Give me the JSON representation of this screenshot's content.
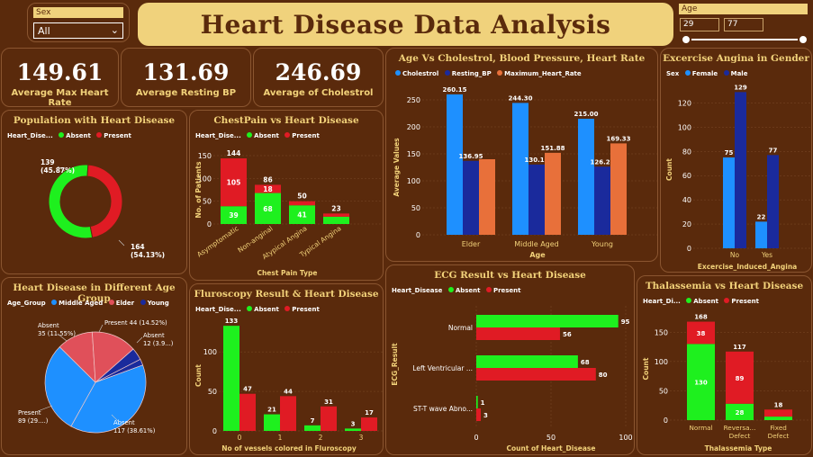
{
  "header": {
    "title": "Heart Disease Data Analysis"
  },
  "sex_slicer": {
    "label": "Sex",
    "value": "All"
  },
  "age_slicer": {
    "label": "Age",
    "min": "29",
    "max": "77",
    "range": [
      29,
      77
    ]
  },
  "kpis": [
    {
      "value": "149.61",
      "label": "Average Max Heart Rate"
    },
    {
      "value": "131.69",
      "label": "Average Resting BP"
    },
    {
      "value": "246.69",
      "label": "Average of Cholestrol"
    }
  ],
  "colors": {
    "absent": "#1ef01e",
    "present": "#e01b24",
    "cholestrol": "#1e90ff",
    "resting_bp": "#1a2a9c",
    "max_hr": "#e8703a",
    "female": "#1e90ff",
    "male": "#1a2a9c",
    "middle_aged": "#1e90ff",
    "elder": "#e0505a",
    "young": "#1a2a9c"
  },
  "chart_data": [
    {
      "id": "population",
      "type": "pie",
      "title": "Population with Heart Disease",
      "legend_title": "Heart_Dise...",
      "series": [
        {
          "name": "Absent",
          "value": 164,
          "label": "164\n(54.13%)"
        },
        {
          "name": "Present",
          "value": 139,
          "label": "139\n(45.87%)"
        }
      ]
    },
    {
      "id": "chestpain",
      "type": "bar",
      "title": "ChestPain vs Heart Disease",
      "legend_title": "Heart_Dise...",
      "xlabel": "Chest Pain Type",
      "ylabel": "No. of Patients",
      "categories": [
        "Asymptomatic",
        "Non-anginal",
        "Atypical Angina",
        "Typical Angina"
      ],
      "series": [
        {
          "name": "Absent",
          "values": [
            39,
            68,
            41,
            16
          ]
        },
        {
          "name": "Present",
          "values": [
            105,
            18,
            9,
            7
          ]
        }
      ],
      "totals": [
        "144",
        "86",
        "50",
        "23"
      ],
      "segment_labels": {
        "Absent": [
          "39",
          "68",
          "41",
          ""
        ],
        "Present": [
          "105",
          "18",
          "",
          ""
        ]
      },
      "ylim": [
        0,
        150
      ],
      "yticks": [
        "0",
        "50",
        "100",
        "150"
      ]
    },
    {
      "id": "age_metrics",
      "type": "bar",
      "title": "Age Vs Cholestrol, Blood Pressure, Heart Rate",
      "xlabel": "Age",
      "ylabel": "Average Values",
      "categories": [
        "Elder",
        "Middle Aged",
        "Young"
      ],
      "series": [
        {
          "name": "Cholestrol",
          "values": [
            260.15,
            244.3,
            215.0
          ]
        },
        {
          "name": "Resting_BP",
          "values": [
            136.95,
            130.15,
            126.22
          ]
        },
        {
          "name": "Maximum_Heart_Rate",
          "values": [
            140,
            151.88,
            169.33
          ]
        }
      ],
      "data_labels": {
        "Cholestrol": [
          "260.15",
          "244.30",
          "215.00"
        ],
        "Resting_BP": [
          "136.95",
          "130.15",
          "126.22"
        ],
        "Maximum_Heart_Rate": [
          "",
          "151.88",
          "169.33"
        ]
      },
      "ylim": [
        0,
        250
      ],
      "yticks": [
        "0",
        "50",
        "100",
        "150",
        "200",
        "250"
      ]
    },
    {
      "id": "angina",
      "type": "bar",
      "title": "Excercise Angina in Gender",
      "legend_title": "Sex",
      "xlabel": "Excercise_Induced_Angina",
      "ylabel": "Count",
      "categories": [
        "No",
        "Yes"
      ],
      "series": [
        {
          "name": "Female",
          "values": [
            75,
            22
          ]
        },
        {
          "name": "Male",
          "values": [
            129,
            77
          ]
        }
      ],
      "ylim": [
        0,
        130
      ],
      "yticks": [
        "0",
        "20",
        "40",
        "60",
        "80",
        "100",
        "120"
      ]
    },
    {
      "id": "age_group",
      "type": "pie",
      "title": "Heart Disease in Different Age Group",
      "legend_title": "Age_Group",
      "legend": [
        "Middle Aged",
        "Elder",
        "Young"
      ],
      "slices": [
        {
          "group": "Middle Aged",
          "status": "Absent",
          "value": 117,
          "label": "Absent\n117 (38.61%)"
        },
        {
          "group": "Middle Aged",
          "status": "Present",
          "value": 89,
          "label": "Present\n89 (29....)"
        },
        {
          "group": "Elder",
          "status": "Absent",
          "value": 35,
          "label": "Absent\n35 (11.55%)"
        },
        {
          "group": "Elder",
          "status": "Present",
          "value": 44,
          "label": "Present 44 (14.52%)"
        },
        {
          "group": "Young",
          "status": "Absent",
          "value": 12,
          "label": "Absent\n12 (3.9...)"
        },
        {
          "group": "Young",
          "status": "Present",
          "value": 6,
          "label": ""
        }
      ]
    },
    {
      "id": "fluoroscopy",
      "type": "bar",
      "title": "Fluroscopy Result & Heart Disease",
      "legend_title": "Heart_Dise...",
      "xlabel": "No of vessels colored in Fluroscopy",
      "ylabel": "Count",
      "categories": [
        "0",
        "1",
        "2",
        "3"
      ],
      "series": [
        {
          "name": "Absent",
          "values": [
            133,
            21,
            7,
            3
          ]
        },
        {
          "name": "Present",
          "values": [
            47,
            44,
            31,
            17
          ]
        }
      ],
      "ylim": [
        0,
        140
      ],
      "yticks": [
        "0",
        "50",
        "100"
      ]
    },
    {
      "id": "ecg",
      "type": "bar",
      "orientation": "horizontal",
      "title": "ECG Result vs Heart Disease",
      "legend_title": "Heart_Disease",
      "xlabel": "Count of Heart_Disease",
      "ylabel": "ECG_Result",
      "categories": [
        "Normal",
        "Left Ventricular ...",
        "ST-T wave Abno..."
      ],
      "series": [
        {
          "name": "Absent",
          "values": [
            95,
            68,
            1
          ]
        },
        {
          "name": "Present",
          "values": [
            56,
            80,
            3
          ]
        }
      ],
      "xlim": [
        0,
        100
      ],
      "xticks": [
        "0",
        "50",
        "100"
      ]
    },
    {
      "id": "thalassemia",
      "type": "bar",
      "title": "Thalassemia vs Heart Disease",
      "legend_title": "Heart_Di...",
      "xlabel": "Thalassemia Type",
      "ylabel": "Count",
      "categories": [
        "Normal",
        "Reversa... Defect",
        "Fixed Defect"
      ],
      "series": [
        {
          "name": "Absent",
          "values": [
            130,
            28,
            6
          ]
        },
        {
          "name": "Present",
          "values": [
            38,
            89,
            12
          ]
        }
      ],
      "totals": [
        "168",
        "117",
        "18"
      ],
      "segment_labels": {
        "Absent": [
          "130",
          "28",
          ""
        ],
        "Present": [
          "38",
          "89",
          ""
        ]
      },
      "ylim": [
        0,
        175
      ],
      "yticks": [
        "0",
        "50",
        "100",
        "150"
      ]
    }
  ],
  "legends": {
    "absent": "Absent",
    "present": "Present",
    "cholestrol": "Cholestrol",
    "resting_bp": "Resting_BP",
    "max_hr": "Maximum_Heart_Rate",
    "female": "Female",
    "male": "Male",
    "middle_aged": "Middle Aged",
    "elder": "Elder",
    "young": "Young"
  }
}
